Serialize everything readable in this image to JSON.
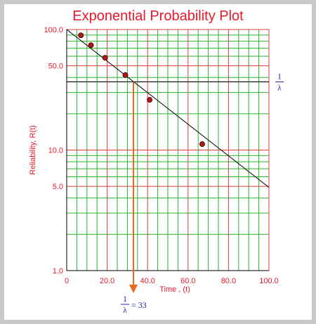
{
  "colors": {
    "frame_bg": "#c9c9c9",
    "plot_bg": "#ffffff",
    "title": "#e8192c",
    "tick_label": "#e8192c",
    "axis_label": "#e8192c",
    "major_grid": "#e03b3b",
    "minor_grid": "#29b229",
    "fit_line": "#000000",
    "mttf_line": "#000000",
    "point_fill": "#b01818",
    "point_stroke": "#5a0a0a",
    "arrow": "#e86a1a",
    "annotation": "#2020b8"
  },
  "chart_data": {
    "type": "scatter",
    "title": "Exponential Probability Plot",
    "xlabel": "Time , (t)",
    "ylabel": "Reliability, R(t)",
    "x_scale": "linear",
    "y_scale": "log",
    "xlim": [
      0,
      100
    ],
    "ylim": [
      1,
      100
    ],
    "x_ticks": [
      0,
      20,
      40,
      60,
      80,
      100
    ],
    "x_tick_labels": [
      "0",
      "20.0",
      "40.0",
      "60.0",
      "80.0",
      "100.0"
    ],
    "y_ticks": [
      1,
      5,
      10,
      50,
      100
    ],
    "y_tick_labels": [
      "1.0",
      "5.0",
      "10.0",
      "50.0",
      "100.0"
    ],
    "x_minor_step": 5,
    "y_minor_values": [
      1,
      2,
      3,
      4,
      5,
      6,
      7,
      8,
      9,
      10,
      20,
      30,
      40,
      50,
      60,
      70,
      80,
      90,
      100
    ],
    "grid": true,
    "points": {
      "x": [
        7,
        12,
        19,
        29,
        41,
        67
      ],
      "y": [
        89.5,
        74.2,
        58.3,
        41.9,
        26.1,
        11.2
      ]
    },
    "fit_line": {
      "x": [
        0,
        100
      ],
      "y": [
        100,
        4.9
      ]
    },
    "mttf": {
      "value": 33,
      "reliability": 36.8,
      "y_label_num": "1",
      "y_label_den": "λ",
      "x_label_num": "1",
      "x_label_den": "λ",
      "x_label_value": "= 33"
    }
  }
}
